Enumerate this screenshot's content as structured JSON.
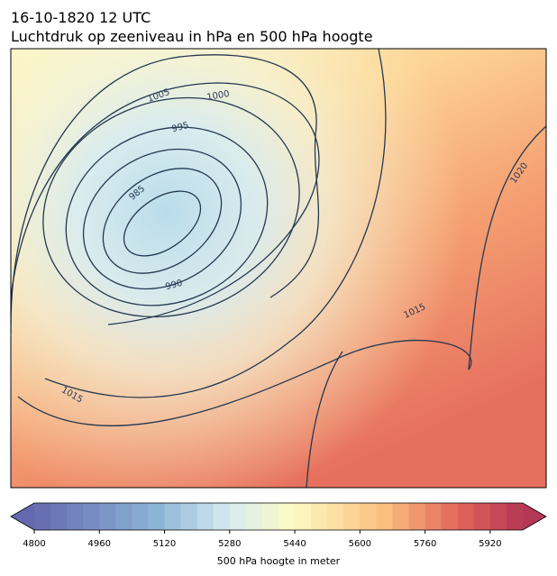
{
  "header": {
    "title": "16-10-1820 12 UTC",
    "subtitle": "Luchtdruk op zeeniveau in hPa en 500 hPa hoogte"
  },
  "map": {
    "contour_labels": [
      "1005",
      "1000",
      "995",
      "985",
      "990",
      "1015",
      "1015",
      "1020"
    ]
  },
  "colorbar": {
    "label": "500 hPa hoogte in meter",
    "range": [
      4800,
      6000
    ],
    "ticks": [
      4800,
      4960,
      5120,
      5280,
      5440,
      5600,
      5760,
      5920
    ]
  }
}
